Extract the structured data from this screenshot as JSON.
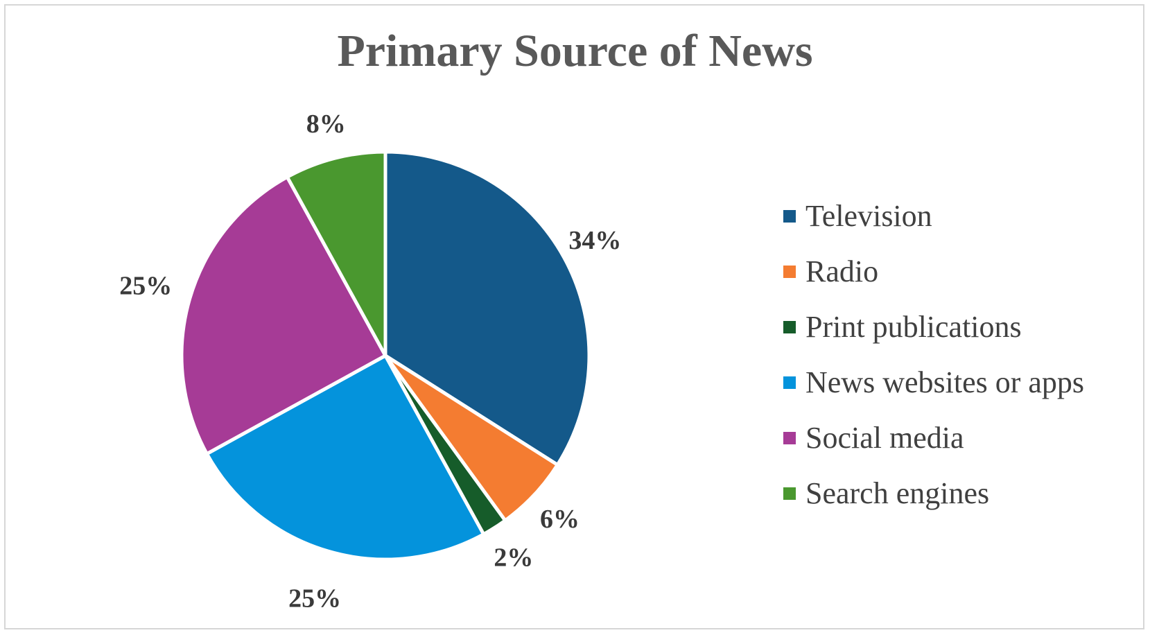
{
  "chart_data": {
    "type": "pie",
    "title": "Primary Source of News",
    "categories": [
      "Television",
      "Radio",
      "Print publications",
      "News websites or apps",
      "Social media",
      "Search engines"
    ],
    "values": [
      34,
      6,
      2,
      25,
      25,
      8
    ],
    "value_labels": [
      "34%",
      "6%",
      "2%",
      "25%",
      "25%",
      "8%"
    ],
    "colors": [
      "#14598a",
      "#f47c31",
      "#165c2a",
      "#0493dc",
      "#a63b96",
      "#4a982f"
    ],
    "start_angle": "12 o'clock",
    "direction": "clockwise",
    "legend_position": "right"
  }
}
